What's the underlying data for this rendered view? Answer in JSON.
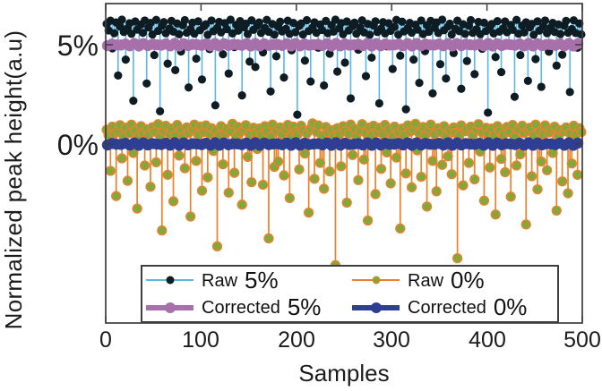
{
  "figure": {
    "ylabel": "Normalized peak height(a.u)",
    "xlabel": "Samples",
    "yticks": [
      "5%",
      "0%"
    ],
    "xticks": [
      "0",
      "100",
      "200",
      "300",
      "400",
      "500"
    ]
  },
  "legend": {
    "entries": [
      {
        "name": "Raw",
        "pct": "5%"
      },
      {
        "name": "Corrected",
        "pct": "5%"
      },
      {
        "name": "Raw",
        "pct": "0%"
      },
      {
        "name": "Corrected",
        "pct": "0%"
      }
    ]
  },
  "colors": {
    "raw5_stem": "#58b8e6",
    "raw5_marker": "#0e1d23",
    "corrected5": "#a770aa",
    "raw0_stem": "#e8832c",
    "raw0_marker": "#82a83c",
    "corrected0": "#2d3e93",
    "axis": "#3d3d3d",
    "text": "#1c1c1c",
    "background": "#ffffff"
  },
  "chart_data": {
    "type": "stem",
    "title": "",
    "xlabel": "Samples",
    "ylabel": "Normalized peak height(a.u)",
    "xlim": [
      0,
      500
    ],
    "ylim_percent": [
      -9,
      7
    ],
    "xtick_values": [
      0,
      100,
      200,
      300,
      400,
      500
    ],
    "ytick_values": [
      5,
      0
    ],
    "grid": false,
    "legend_position": "south-inside",
    "legend_labels": [
      "Raw 5%",
      "Corrected 5%",
      "Raw 0%",
      "Corrected 0%"
    ],
    "series": [
      {
        "name": "Raw 5%",
        "kind": "stem",
        "stem_color": "#58b8e6",
        "marker_color": "#0e1d23",
        "marker_edge": "none",
        "marker_radius": 4.6,
        "stem_width": 1.6,
        "x_start": 1,
        "x_step": 2,
        "values": [
          6.05,
          5.72,
          6.21,
          4.82,
          5.58,
          6.12,
          3.45,
          5.91,
          6.26,
          5.64,
          4.25,
          5.83,
          6.08,
          5.55,
          2.18,
          6.17,
          5.76,
          4.95,
          6.02,
          5.6,
          6.22,
          3.05,
          5.87,
          6.1,
          5.52,
          4.48,
          6.25,
          5.7,
          1.65,
          5.95,
          6.14,
          5.58,
          4.05,
          5.82,
          6.2,
          5.66,
          3.72,
          6.07,
          5.53,
          4.66,
          5.98,
          6.24,
          5.61,
          2.85,
          5.79,
          6.11,
          5.56,
          4.3,
          6.18,
          5.73,
          3.25,
          5.92,
          6.03,
          5.5,
          4.78,
          6.22,
          5.68,
          1.95,
          5.85,
          6.15,
          5.62,
          4.52,
          6.09,
          5.78,
          3.55,
          6.26,
          5.57,
          4.88,
          6.0,
          5.71,
          6.19,
          2.45,
          5.88,
          6.06,
          5.54,
          4.15,
          6.23,
          5.75,
          3.88,
          5.96,
          6.12,
          5.59,
          4.62,
          5.84,
          6.25,
          5.65,
          2.65,
          6.04,
          5.51,
          4.42,
          5.9,
          6.16,
          5.67,
          3.35,
          5.8,
          6.21,
          5.55,
          4.72,
          6.1,
          5.63,
          1.48,
          5.94,
          6.07,
          5.52,
          4.2,
          6.24,
          5.69,
          3.15,
          5.86,
          6.13,
          5.6,
          4.85,
          6.02,
          5.74,
          2.95,
          6.2,
          5.58,
          4.55,
          5.99,
          5.66,
          6.26,
          3.65,
          5.82,
          6.09,
          5.53,
          4.1,
          6.17,
          5.72,
          2.3,
          5.93,
          6.11,
          5.56,
          4.75,
          5.87,
          6.23,
          5.62,
          3.42,
          6.05,
          5.5,
          4.35,
          5.97,
          6.18,
          5.64,
          2.05,
          5.81,
          6.14,
          5.57,
          4.92,
          6.08,
          5.7,
          3.78,
          5.89,
          6.25,
          5.51,
          4.45,
          6.16,
          5.67,
          1.75,
          5.84,
          6.1,
          5.61,
          4.25,
          6.01,
          5.76,
          3.08,
          6.22,
          5.54,
          4.68,
          5.98,
          5.65,
          6.2,
          2.55,
          5.85,
          6.12,
          5.59,
          4.02,
          6.26,
          5.73,
          3.3,
          5.91,
          6.06,
          5.52,
          4.58,
          5.8,
          6.21,
          5.68,
          2.78,
          6.03,
          5.55,
          4.18,
          5.95,
          6.24,
          5.6,
          3.52,
          5.78,
          6.15,
          5.53,
          4.8,
          6.11,
          5.69,
          1.58,
          5.9,
          6.04,
          5.57,
          4.38,
          6.19,
          5.66,
          3.62,
          5.83,
          6.17,
          5.63,
          4.98,
          6.0,
          5.75,
          2.38,
          6.25,
          5.56,
          4.48,
          5.97,
          5.62,
          6.13,
          3.18,
          5.88,
          6.05,
          5.5,
          4.28,
          6.18,
          5.71,
          2.88,
          5.92,
          6.22,
          5.58,
          4.65,
          5.86,
          6.1,
          5.64,
          3.95,
          6.02,
          5.54,
          4.5,
          5.96,
          6.2,
          5.61,
          2.62,
          5.79,
          6.23,
          5.59,
          4.85,
          6.07,
          5.52
        ]
      },
      {
        "name": "Corrected 5%",
        "kind": "line",
        "color": "#a770aa",
        "constant_value": 5,
        "line_width": 6,
        "marker_radius": 6.2
      },
      {
        "name": "Raw 0%",
        "kind": "stem",
        "stem_color": "#e8832c",
        "marker_color": "#82a83c",
        "marker_edge": "#e8832c",
        "marker_radius": 4.9,
        "stem_width": 1.7,
        "x_start": 1,
        "x_step": 2,
        "values": [
          0.72,
          0.45,
          -1.35,
          0.88,
          0.52,
          -2.62,
          0.61,
          0.95,
          -0.72,
          0.38,
          0.82,
          -1.85,
          0.55,
          0.98,
          -0.45,
          0.68,
          -3.25,
          0.42,
          0.9,
          0.58,
          -1.08,
          0.75,
          0.48,
          -2.15,
          0.85,
          0.62,
          -0.92,
          1.0,
          0.4,
          -4.35,
          0.66,
          0.92,
          -1.55,
          0.5,
          0.78,
          -2.88,
          0.44,
          0.96,
          -0.58,
          0.7,
          0.36,
          -1.22,
          0.84,
          0.56,
          -3.65,
          0.74,
          0.98,
          -0.85,
          0.46,
          0.88,
          -2.35,
          0.6,
          0.94,
          -1.68,
          0.52,
          0.8,
          -0.35,
          0.68,
          -5.15,
          0.42,
          0.9,
          -1.02,
          0.54,
          0.76,
          -2.45,
          0.64,
          1.02,
          -1.45,
          0.38,
          0.86,
          0.58,
          -3.05,
          0.72,
          0.95,
          -0.65,
          0.48,
          -1.92,
          0.82,
          0.56,
          -0.25,
          0.78,
          0.44,
          -2.05,
          0.9,
          0.62,
          -4.75,
          0.36,
          0.98,
          -1.15,
          0.66,
          -0.88,
          0.84,
          0.5,
          -1.58,
          0.74,
          0.96,
          -2.72,
          0.4,
          0.88,
          0.6,
          0.46,
          -1.28,
          0.92,
          0.68,
          -0.48,
          0.54,
          -3.45,
          0.78,
          1.04,
          -1.75,
          0.62,
          0.94,
          -0.95,
          0.42,
          -2.25,
          0.86,
          0.58,
          -1.38,
          0.7,
          0.36,
          -6.1,
          0.8,
          0.48,
          -1.12,
          0.9,
          0.64,
          -2.95,
          0.52,
          0.98,
          -0.55,
          0.76,
          0.4,
          -1.82,
          0.66,
          1.0,
          -0.78,
          0.56,
          -3.85,
          0.84,
          0.44,
          0.92,
          -2.52,
          0.6,
          0.82,
          -1.25,
          0.5,
          0.96,
          -0.42,
          0.72,
          -1.98,
          0.38,
          0.88,
          -0.68,
          0.58,
          -4.25,
          0.78,
          0.46,
          -1.48,
          0.94,
          0.62,
          -2.18,
          0.7,
          1.02,
          -0.32,
          0.54,
          -1.65,
          0.86,
          0.42,
          -3.15,
          0.74,
          0.98,
          -0.85,
          0.5,
          -2.38,
          0.8,
          0.6,
          -1.05,
          0.9,
          0.38,
          -0.62,
          0.68,
          -1.52,
          0.84,
          0.56,
          -5.75,
          0.46,
          0.94,
          -2.08,
          0.64,
          0.76,
          -0.95,
          0.88,
          0.44,
          -1.78,
          0.72,
          1.0,
          -0.38,
          0.58,
          -2.85,
          0.82,
          0.52,
          -1.18,
          0.78,
          0.4,
          -3.55,
          0.9,
          0.66,
          -0.75,
          0.48,
          -1.42,
          0.86,
          0.6,
          -2.65,
          0.96,
          0.36,
          -1.08,
          0.74,
          -0.52,
          0.92,
          0.56,
          -4.05,
          0.68,
          0.82,
          -1.62,
          0.44,
          0.98,
          -2.28,
          0.62,
          -0.88,
          0.5,
          0.94,
          -1.32,
          0.58,
          0.76,
          -0.45,
          0.88,
          -3.35,
          0.4,
          0.7,
          -1.88,
          0.64,
          0.84,
          -2.48,
          0.54,
          -0.98,
          0.92,
          0.46,
          -1.55,
          0.8,
          0.6
        ]
      },
      {
        "name": "Corrected 0%",
        "kind": "line",
        "color": "#2d3e93",
        "constant_value": 0,
        "line_width": 6,
        "marker_radius": 6.2
      }
    ]
  }
}
